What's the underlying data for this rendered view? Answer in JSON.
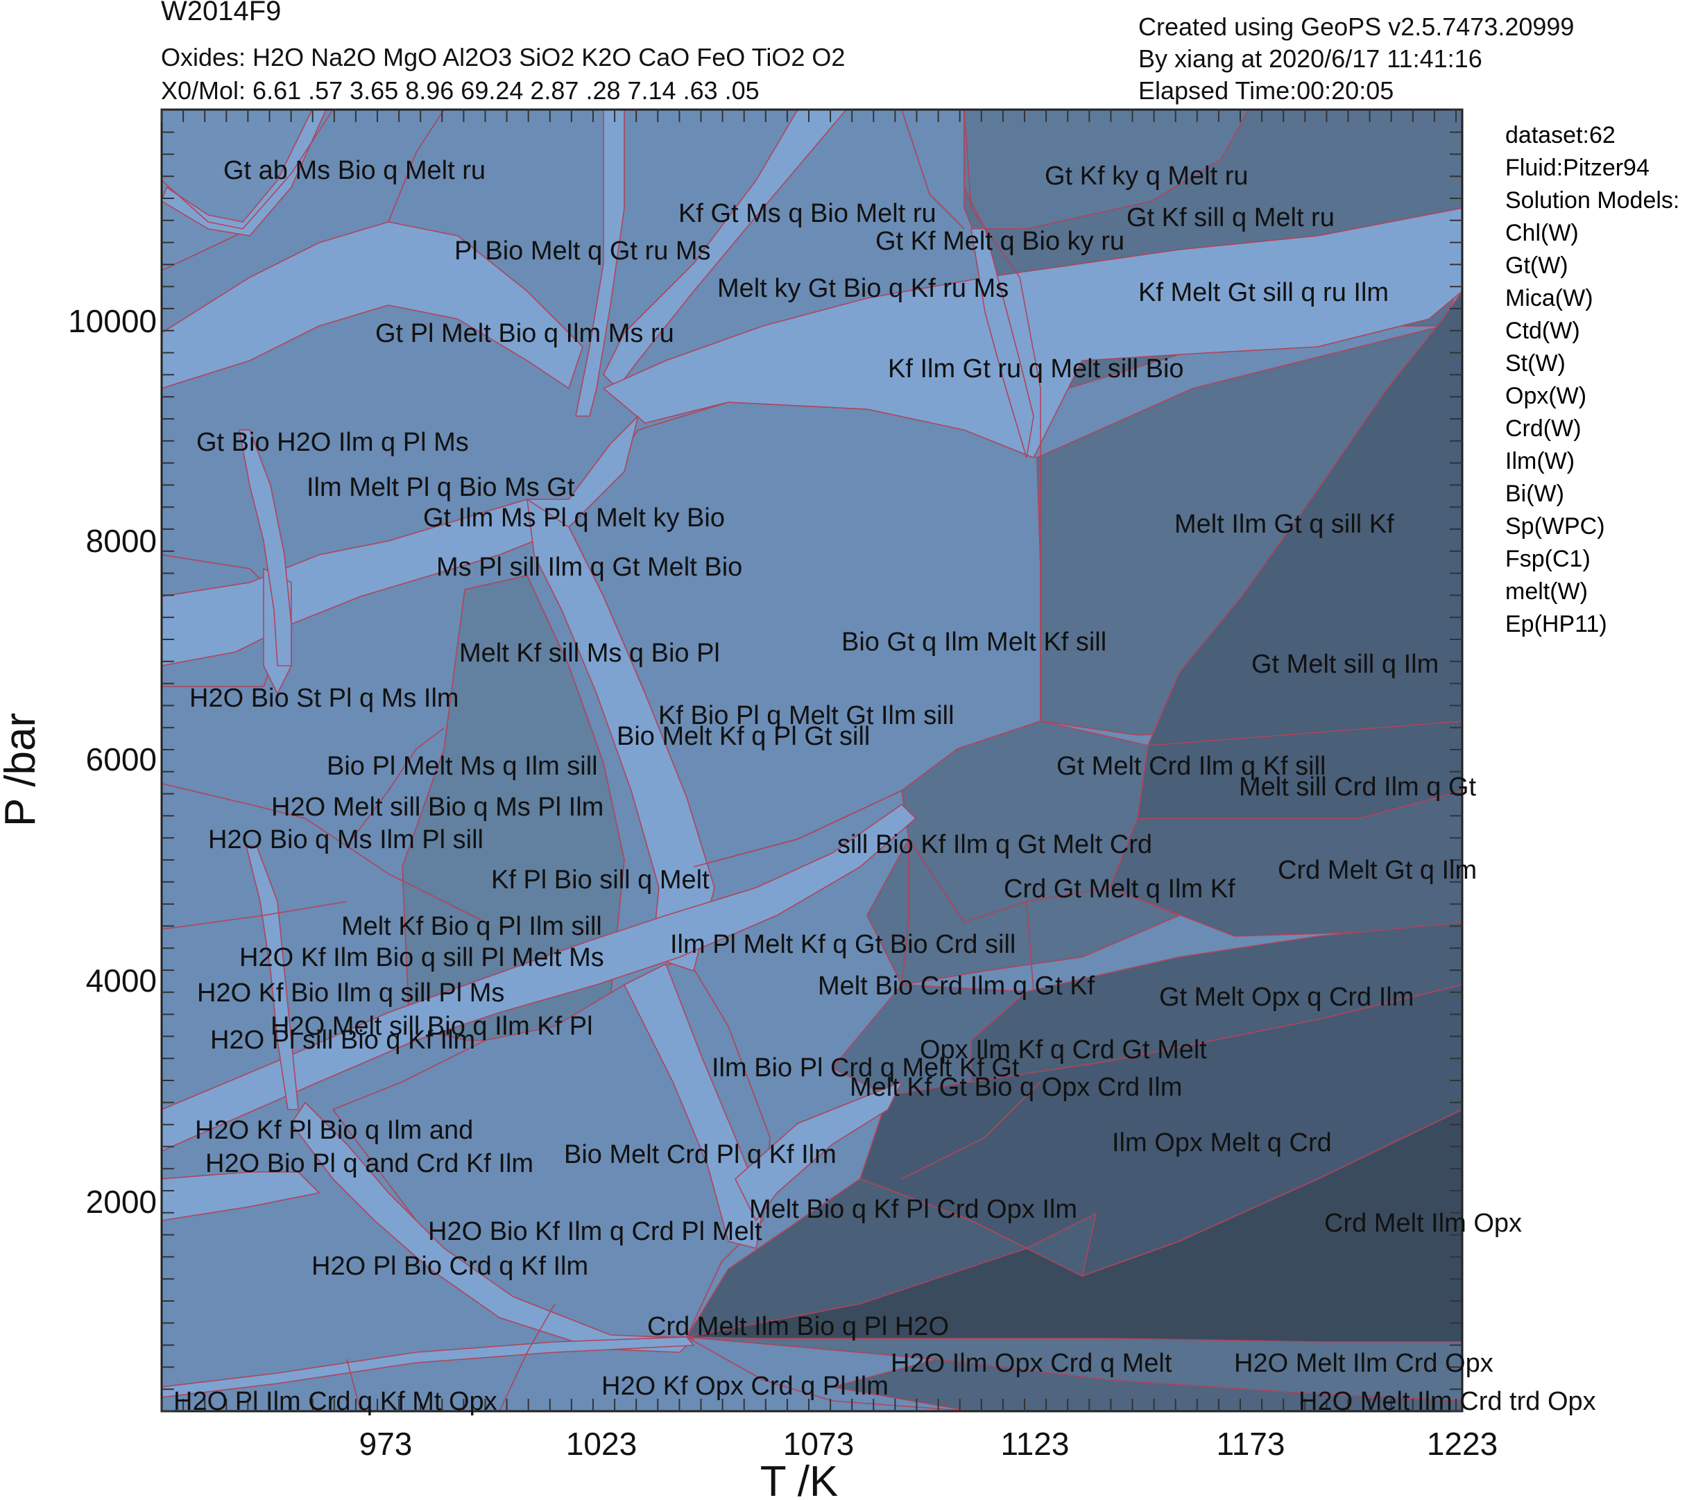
{
  "header": {
    "title": "W2014F9",
    "oxides": "Oxides: H2O Na2O MgO Al2O3 SiO2 K2O CaO FeO TiO2 O2",
    "x0": "X0/Mol: 6.61 .57 3.65 8.96 69.24 2.87 .28 7.14 .63 .05",
    "created": "Created using GeoPS v2.5.7473.20999",
    "by": "By xiang at 2020/6/17 11:41:16",
    "elapsed": "Elapsed Time:00:20:05"
  },
  "info_panel": [
    "dataset:62",
    "Fluid:Pitzer94",
    "Solution Models:",
    "Chl(W)",
    "Gt(W)",
    "Mica(W)",
    "Ctd(W)",
    "St(W)",
    "Opx(W)",
    "Crd(W)",
    "Ilm(W)",
    "Bi(W)",
    "Sp(WPC)",
    "Fsp(C1)",
    "melt(W)",
    "Ep(HP11)"
  ],
  "axes": {
    "xlabel": "T /K",
    "ylabel": "P /bar",
    "xticks": [
      "973",
      "1023",
      "1073",
      "1123",
      "1173",
      "1223"
    ],
    "yticks": [
      "2000",
      "4000",
      "6000",
      "8000",
      "10000"
    ]
  },
  "colors": {
    "light": "#7ea3d1",
    "mid": "#6b8cb4",
    "dark": "#58728f",
    "darker": "#4a5f78",
    "darkest": "#3b4b5e",
    "boundary": "#b0445c"
  },
  "fields": [
    "Gt ab Ms Bio q Melt ru",
    "Kf Gt Ms q Bio Melt ru",
    "Pl Bio Melt q Gt ru Ms",
    "Gt Kf ky q Melt ru",
    "Gt Kf sill q Melt ru",
    "Gt Kf Melt q Bio ky ru",
    "Melt ky Gt Bio q Kf ru Ms",
    "Kf Melt Gt sill q ru Ilm",
    "Gt Pl Melt Bio q Ilm Ms ru",
    "Kf Ilm Gt ru q Melt sill Bio",
    "Gt Bio H2O Ilm q Pl Ms",
    "Ilm Melt Pl q Bio Ms Gt",
    "Gt Ilm Ms Pl q Melt ky Bio",
    "Melt Ilm Gt q sill Kf",
    "Ms Pl sill Ilm q Gt Melt Bio",
    "Bio Gt q Ilm Melt Kf sill",
    "Melt Kf sill Ms q Bio Pl",
    "Gt Melt sill q Ilm",
    "H2O Bio St Pl q Ms Ilm",
    "Kf Bio Pl q Melt Gt Ilm sill",
    "Bio Melt Kf q Pl Gt sill",
    "Bio Pl Melt Ms q Ilm sill",
    "Gt Melt Crd Ilm q Kf sill",
    "Melt sill Crd Ilm q Gt",
    "H2O Melt sill Bio q Ms Pl Ilm",
    "H2O Bio q Ms Ilm Pl sill",
    "sill Bio Kf Ilm q Gt Melt Crd",
    "Crd Melt Gt q Ilm",
    "Kf Pl Bio sill q Melt",
    "Crd Gt Melt q Ilm Kf",
    "Melt Kf Bio q Pl Ilm sill",
    "Ilm Pl Melt Kf q Gt Bio Crd sill",
    "H2O Kf Ilm Bio q sill Pl Melt Ms",
    "Melt Bio Crd Ilm q Gt Kf",
    "H2O Kf Bio Ilm q sill Pl Ms",
    "Gt Melt Opx q Crd Ilm",
    "H2O Melt sill Bio q Ilm Kf Pl",
    "H2O Pl sill Bio q Kf Ilm",
    "Opx Ilm Kf q Crd Gt Melt",
    "Ilm Bio Pl Crd q Melt Kf Gt",
    "Melt Kf Gt Bio q Opx Crd Ilm",
    "H2O Kf Pl Bio q Ilm and",
    "Ilm Opx Melt q Crd",
    "H2O Bio Pl q and Crd Kf Ilm",
    "Bio Melt Crd Pl q Kf Ilm",
    "Melt Bio q Kf Pl Crd Opx Ilm",
    "Crd Melt Ilm Opx",
    "H2O Bio Kf Ilm q Crd Pl Melt",
    "H2O Pl Bio Crd q Kf Ilm",
    "Crd Melt Ilm Bio q Pl H2O",
    "H2O Ilm Opx Crd q Melt",
    "H2O Melt Ilm Crd Opx",
    "H2O Kf Opx Crd q Pl Ilm",
    "H2O Pl Ilm Crd q Kf Mt Opx",
    "H2O Melt Ilm Crd trd Opx"
  ]
}
